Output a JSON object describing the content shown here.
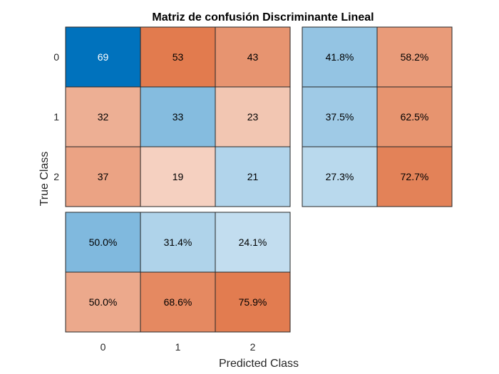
{
  "chart_data": {
    "type": "heatmap",
    "title": "Matriz de confusión Discriminante Lineal",
    "xlabel": "Predicted Class",
    "ylabel": "True Class",
    "classes": [
      "0",
      "1",
      "2"
    ],
    "matrix": [
      [
        69,
        53,
        43
      ],
      [
        32,
        33,
        23
      ],
      [
        37,
        19,
        21
      ]
    ],
    "row_summary": [
      [
        "41.8%",
        "58.2%"
      ],
      [
        "37.5%",
        "62.5%"
      ],
      [
        "27.3%",
        "72.7%"
      ]
    ],
    "column_summary": [
      [
        "50.0%",
        "31.4%",
        "24.1%"
      ],
      [
        "50.0%",
        "68.6%",
        "75.9%"
      ]
    ],
    "colors": {
      "correct": "#0072BD",
      "incorrect": "#D95319",
      "border": "#262626"
    }
  }
}
